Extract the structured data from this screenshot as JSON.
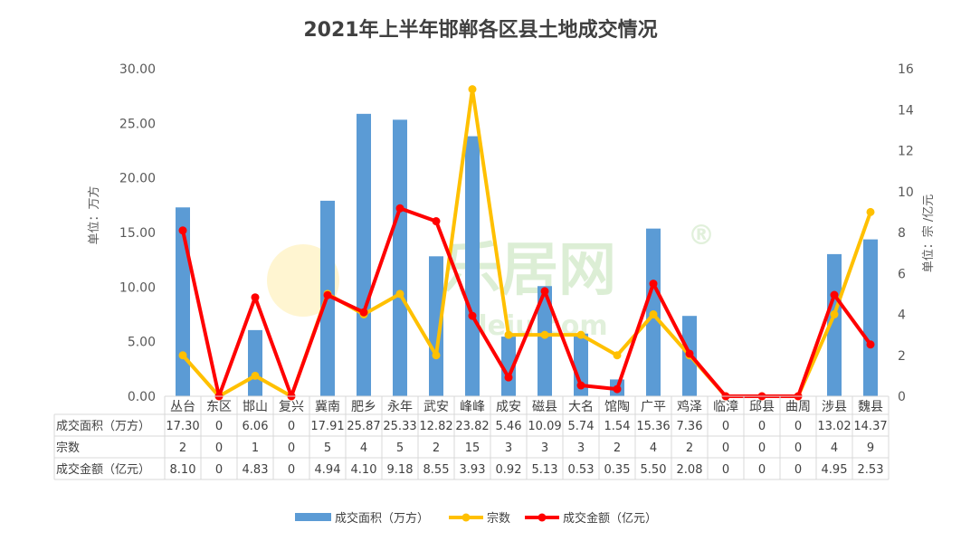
{
  "chart_data": {
    "type": "bar",
    "title": "2021年上半年邯郸各区县土地成交情况",
    "categories": [
      "丛台",
      "东区",
      "邯山",
      "复兴",
      "冀南",
      "肥乡",
      "永年",
      "武安",
      "峰峰",
      "成安",
      "磁县",
      "大名",
      "馆陶",
      "广平",
      "鸡泽",
      "临漳",
      "邱县",
      "曲周",
      "涉县",
      "魏县"
    ],
    "ylabel_left": "单位：万方",
    "ylabel_right": "单位：宗 /亿元",
    "ylim_left": [
      0,
      30
    ],
    "ylim_right": [
      0,
      16
    ],
    "left_ticks": [
      "0.00",
      "5.00",
      "10.00",
      "15.00",
      "20.00",
      "25.00",
      "30.00"
    ],
    "right_ticks": [
      "0",
      "2",
      "4",
      "6",
      "8",
      "10",
      "12",
      "14",
      "16"
    ],
    "series": [
      {
        "name": "成交面积（万方）",
        "type": "bar",
        "axis": "left",
        "color": "#5b9bd5",
        "values": [
          17.3,
          0,
          6.06,
          0,
          17.91,
          25.87,
          25.33,
          12.82,
          23.82,
          5.46,
          10.09,
          5.74,
          1.54,
          15.36,
          7.36,
          0,
          0,
          0,
          13.02,
          14.37
        ],
        "labels": [
          "17.30",
          "0",
          "6.06",
          "0",
          "17.91",
          "25.87",
          "25.33",
          "12.82",
          "23.82",
          "5.46",
          "10.09",
          "5.74",
          "1.54",
          "15.36",
          "7.36",
          "0",
          "0",
          "0",
          "13.02",
          "14.37"
        ]
      },
      {
        "name": "宗数",
        "type": "line",
        "axis": "right",
        "color": "#ffc000",
        "values": [
          2,
          0,
          1,
          0,
          5,
          4,
          5,
          2,
          15,
          3,
          3,
          3,
          2,
          4,
          2,
          0,
          0,
          0,
          4,
          9
        ],
        "labels": [
          "2",
          "0",
          "1",
          "0",
          "5",
          "4",
          "5",
          "2",
          "15",
          "3",
          "3",
          "3",
          "2",
          "4",
          "2",
          "0",
          "0",
          "0",
          "4",
          "9"
        ]
      },
      {
        "name": "成交金额（亿元）",
        "type": "line",
        "axis": "right",
        "color": "#ff0000",
        "values": [
          8.1,
          0,
          4.83,
          0,
          4.94,
          4.1,
          9.18,
          8.55,
          3.93,
          0.92,
          5.13,
          0.53,
          0.35,
          5.5,
          2.08,
          0,
          0,
          0,
          4.95,
          2.53
        ],
        "labels": [
          "8.10",
          "0",
          "4.83",
          "0",
          "4.94",
          "4.10",
          "9.18",
          "8.55",
          "3.93",
          "0.92",
          "5.13",
          "0.53",
          "0.35",
          "5.50",
          "2.08",
          "0",
          "0",
          "0",
          "4.95",
          "2.53"
        ]
      }
    ],
    "legend_position": "bottom",
    "grid": false
  },
  "watermark": {
    "text": "乐居网",
    "sub": "leju.com",
    "reg": "®"
  }
}
